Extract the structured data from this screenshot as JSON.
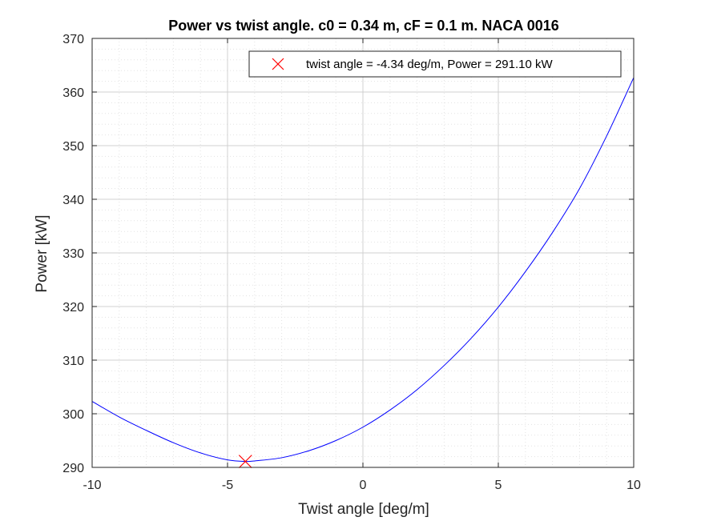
{
  "chart_data": {
    "type": "line",
    "title": "Power vs twist angle. c0 = 0.34 m, cF = 0.1 m. NACA 0016",
    "xlabel": "Twist angle [deg/m]",
    "ylabel": "Power [kW]",
    "xlim": [
      -10,
      10
    ],
    "ylim": [
      290,
      370
    ],
    "xticks": [
      -10,
      -5,
      0,
      5,
      10
    ],
    "xtick_labels": [
      "-10",
      "-5",
      "0",
      "5",
      "10"
    ],
    "yticks": [
      290,
      300,
      310,
      320,
      330,
      340,
      350,
      360,
      370
    ],
    "ytick_labels": [
      "290",
      "300",
      "310",
      "320",
      "330",
      "340",
      "350",
      "360",
      "370"
    ],
    "grid": true,
    "minor_grid": true,
    "legend_position": "top-right",
    "series": [
      {
        "color": "#0000ff",
        "x": [
          -10,
          -9,
          -8,
          -7,
          -6,
          -5,
          -4.34,
          -4,
          -3,
          -2,
          -1,
          0,
          1,
          2,
          3,
          4,
          5,
          6,
          7,
          8,
          9,
          10
        ],
        "y": [
          302.3,
          299.4,
          296.9,
          294.6,
          292.7,
          291.4,
          291.1,
          291.2,
          291.8,
          293.1,
          295.0,
          297.5,
          300.7,
          304.5,
          309.0,
          314.1,
          319.9,
          326.5,
          333.8,
          342.0,
          351.8,
          362.7
        ]
      }
    ],
    "marker": {
      "x": -4.34,
      "y": 291.1,
      "symbol": "x",
      "color": "#ff0000",
      "label": "twist angle = -4.34 deg/m, Power = 291.10 kW"
    }
  }
}
